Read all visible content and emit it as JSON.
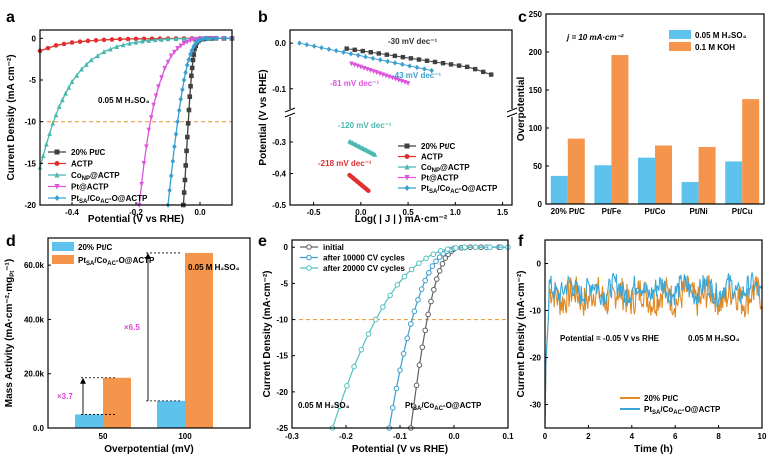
{
  "chart_data": [
    {
      "panel": "a",
      "type": "line",
      "xlabel": "Potential  (V vs RHE)",
      "ylabel": "Current Density (mA cm⁻²)",
      "xlim": [
        -0.5,
        0.1
      ],
      "ylim": [
        -20,
        1
      ],
      "xticks": [
        "-0.4",
        "-0.2",
        "0.0"
      ],
      "yticks": [
        "0",
        "-5",
        "-10",
        "-15",
        "-20"
      ],
      "annotation": "0.05 M H₂SO₄",
      "ref_line": -10,
      "series": [
        {
          "name": "20% Pt/C",
          "color": "#404040",
          "marker": "square",
          "x": [
            -0.052,
            -0.047,
            -0.042,
            -0.037,
            -0.032,
            -0.027,
            -0.022,
            -0.017,
            -0.01,
            0.0,
            0.02,
            0.05,
            0.1
          ],
          "y": [
            -20,
            -17,
            -13.5,
            -10.2,
            -7,
            -4.5,
            -2.6,
            -1.3,
            -0.5,
            -0.15,
            -0.05,
            0,
            0
          ]
        },
        {
          "name": "ACTP",
          "color": "#e03030",
          "marker": "circle",
          "x": [
            -0.5,
            -0.45,
            -0.4,
            -0.35,
            -0.3,
            -0.25,
            -0.2,
            -0.15,
            -0.1,
            -0.05,
            0.0,
            0.05,
            0.1
          ],
          "y": [
            -1.5,
            -0.85,
            -0.5,
            -0.3,
            -0.18,
            -0.1,
            -0.06,
            -0.04,
            -0.02,
            -0.01,
            0,
            0,
            0
          ]
        },
        {
          "name": "Co<sub>NP</sub>@ACTP",
          "color": "#49b8b0",
          "marker": "triangle",
          "x": [
            -0.5,
            -0.48,
            -0.46,
            -0.44,
            -0.42,
            -0.4,
            -0.37,
            -0.34,
            -0.3,
            -0.26,
            -0.22,
            -0.18,
            -0.14,
            -0.1,
            -0.05,
            0.0,
            0.05
          ],
          "y": [
            -15.5,
            -12.7,
            -10.2,
            -8.2,
            -6.6,
            -5.2,
            -3.7,
            -2.6,
            -1.6,
            -1.0,
            -0.6,
            -0.35,
            -0.18,
            -0.08,
            -0.03,
            0,
            0
          ]
        },
        {
          "name": "Pt@ACTP",
          "color": "#dd55dd",
          "marker": "triangle-down",
          "x": [
            -0.19,
            -0.175,
            -0.16,
            -0.145,
            -0.13,
            -0.11,
            -0.09,
            -0.07,
            -0.05,
            -0.03,
            -0.01,
            0.02,
            0.05,
            0.1
          ],
          "y": [
            -20,
            -15,
            -11,
            -8,
            -5.8,
            -3.6,
            -2.1,
            -1.2,
            -0.6,
            -0.25,
            -0.08,
            0,
            0,
            0
          ]
        },
        {
          "name": "Pt<sub>SA</sub>/Co<sub>AC</sub>-O@ACTP",
          "color": "#3a9fd0",
          "marker": "diamond",
          "x": [
            -0.1,
            -0.09,
            -0.08,
            -0.07,
            -0.06,
            -0.05,
            -0.04,
            -0.03,
            -0.02,
            -0.01,
            0.0,
            0.02,
            0.05,
            0.1
          ],
          "y": [
            -20,
            -16.5,
            -13,
            -10,
            -7.3,
            -5,
            -3.2,
            -1.9,
            -1.0,
            -0.45,
            -0.15,
            0,
            0,
            0
          ]
        }
      ]
    },
    {
      "panel": "b",
      "type": "scatter",
      "xlabel": "Log( | J | ) mA·cm⁻²",
      "ylabel": "Potential (V vs RHE)",
      "xlim": [
        -0.75,
        1.6
      ],
      "xticks": [
        "-0.5",
        "0.0",
        "0.5",
        "1.0",
        "1.5"
      ],
      "yticks_upper": [
        "0.0",
        "-0.1"
      ],
      "yticks_lower": [
        "-0.3",
        "-0.4",
        "-0.5"
      ],
      "ylim_upper": [
        -0.14,
        0.02
      ],
      "ylim_lower": [
        -0.5,
        -0.23
      ],
      "series": [
        {
          "name": "20% Pt/C",
          "color": "#404040",
          "marker": "square",
          "slope": "-30 mV dec⁻¹",
          "x0": -0.15,
          "x1": 1.38,
          "y0": -0.012,
          "y1": -0.06
        },
        {
          "name": "ACTP",
          "color": "#e03030",
          "marker": "circle",
          "slope": "-218 mV dec⁻¹",
          "x0": -0.12,
          "x1": 0.08,
          "y0": -0.405,
          "y1": -0.455
        },
        {
          "name": "Co<sub>NP</sub>@ACTP",
          "color": "#49b8b0",
          "marker": "triangle",
          "slope": "-120 mV dec⁻¹",
          "x0": -0.12,
          "x1": 0.15,
          "y0": -0.298,
          "y1": -0.34
        },
        {
          "name": "Pt@ACTP",
          "color": "#dd55dd",
          "marker": "triangle-down",
          "slope": "-81 mV dec⁻¹",
          "x0": -0.1,
          "x1": 0.5,
          "y0": -0.045,
          "y1": -0.088
        },
        {
          "name": "Pt<sub>SA</sub>/Co<sub>AC</sub>-O@ACTP",
          "color": "#3a9fd0",
          "marker": "diamond",
          "slope": "-43 mV dec⁻¹",
          "x0": -0.65,
          "x1": 0.75,
          "y0": 0.0,
          "y1": -0.06
        }
      ]
    },
    {
      "panel": "c",
      "type": "bar",
      "ylabel": "Overpotential",
      "categories": [
        "20% Pt/C",
        "Pt/Fe",
        "Pt/Co",
        "Pt/Ni",
        "Pt/Cu"
      ],
      "ylim": [
        0,
        250
      ],
      "yticks": [
        "0",
        "50",
        "100",
        "150",
        "200",
        "250"
      ],
      "annotation": "j = 10 mA·cm⁻²",
      "series": [
        {
          "name": "0.05 M H₂SO₄",
          "color": "#5ec3ec",
          "values": [
            37,
            51,
            61,
            29,
            56
          ]
        },
        {
          "name": "0.1 M KOH",
          "color": "#f5954c",
          "values": [
            86,
            196,
            77,
            75,
            138
          ]
        }
      ]
    },
    {
      "panel": "d",
      "type": "bar",
      "xlabel": "Overpotential (mV)",
      "ylabel": "Mass Activity (mA·cm⁻²·mg<sub>Pt</sub>⁻¹)",
      "categories": [
        "50",
        "100"
      ],
      "ylim": [
        0,
        70000
      ],
      "yticks": [
        "0.0",
        "20.0k",
        "40.0k",
        "60.0k"
      ],
      "annotation": "0.05 M H₂SO₄",
      "ratios": [
        "×3.7",
        "×6.5"
      ],
      "series": [
        {
          "name": "20% Pt/C",
          "color": "#5ec3ec",
          "values": [
            5000,
            10000
          ]
        },
        {
          "name": "Pt<sub>SA</sub>/Co<sub>AC</sub>-O@ACTP",
          "color": "#f5954c",
          "values": [
            18500,
            64500
          ]
        }
      ]
    },
    {
      "panel": "e",
      "type": "line",
      "xlabel": "Potential (V vs RHE)",
      "ylabel": "Current Density (mA·cm⁻²)",
      "xlim": [
        -0.3,
        0.1
      ],
      "ylim": [
        -25,
        1
      ],
      "xticks": [
        "-0.3",
        "-0.2",
        "-0.1",
        "0.0",
        "0.1"
      ],
      "yticks": [
        "0",
        "-5",
        "-10",
        "-15",
        "-20",
        "-25"
      ],
      "annotation1": "0.05 M H₂SO₄",
      "annotation2": "Pt<sub>SA</sub>/Co<sub>AC</sub>-O@ACTP",
      "ref_line": -10,
      "series": [
        {
          "name": "initial",
          "color": "#606060",
          "marker": "circle",
          "x": [
            -0.08,
            -0.072,
            -0.064,
            -0.056,
            -0.048,
            -0.04,
            -0.032,
            -0.024,
            -0.016,
            -0.008,
            0.0,
            0.02,
            0.05,
            0.1
          ],
          "y": [
            -25,
            -20.5,
            -16.3,
            -12.6,
            -9.3,
            -6.6,
            -4.4,
            -2.7,
            -1.5,
            -0.7,
            -0.25,
            0,
            0,
            0
          ]
        },
        {
          "name": "after 10000 CV cycles",
          "color": "#3a9fd0",
          "marker": "circle",
          "x": [
            -0.12,
            -0.11,
            -0.1,
            -0.09,
            -0.08,
            -0.07,
            -0.06,
            -0.05,
            -0.04,
            -0.03,
            -0.02,
            -0.01,
            0.0,
            0.03,
            0.06,
            0.1
          ],
          "y": [
            -25,
            -20.8,
            -17,
            -13.6,
            -10.6,
            -8.0,
            -5.8,
            -4.0,
            -2.6,
            -1.6,
            -0.9,
            -0.4,
            -0.15,
            0,
            0,
            0
          ]
        },
        {
          "name": "after 20000 CV cycles",
          "color": "#55c0c0",
          "marker": "circle",
          "x": [
            -0.225,
            -0.205,
            -0.185,
            -0.165,
            -0.145,
            -0.125,
            -0.105,
            -0.085,
            -0.065,
            -0.045,
            -0.025,
            -0.005,
            0.02,
            0.05,
            0.1
          ],
          "y": [
            -25,
            -20.5,
            -16.5,
            -13.0,
            -10.0,
            -7.4,
            -5.2,
            -3.5,
            -2.2,
            -1.2,
            -0.5,
            -0.15,
            0,
            0,
            0
          ]
        }
      ]
    },
    {
      "panel": "f",
      "type": "line",
      "xlabel": "Time (h)",
      "ylabel": "Current Density (mA·cm⁻²)",
      "xlim": [
        0,
        10
      ],
      "ylim": [
        -35,
        5
      ],
      "xticks": [
        "0",
        "2",
        "4",
        "6",
        "8",
        "10"
      ],
      "yticks": [
        "0",
        "-10",
        "-20",
        "-30"
      ],
      "annotation1": "Potential = -0.05 V vs RHE",
      "annotation2": "0.05 M H₂SO₄",
      "series": [
        {
          "name": "20% Pt/C",
          "color": "#e08a25",
          "mean": -7,
          "amplitude": 3.5
        },
        {
          "name": "Pt<sub>SA</sub>/Co<sub>AC</sub>-O@ACTP",
          "color": "#3aa7d8",
          "mean": -5.5,
          "amplitude": 2.5
        }
      ]
    }
  ]
}
